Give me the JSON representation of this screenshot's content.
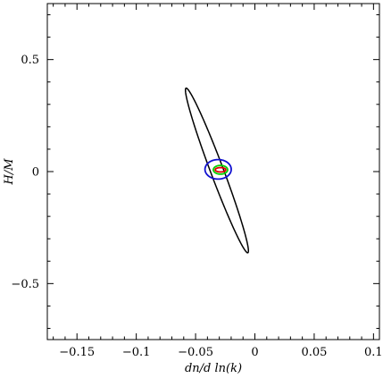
{
  "chart_data": {
    "type": "scatter",
    "title": "",
    "xlabel": "dn/d ln(k)",
    "ylabel": "H/M",
    "xlim": [
      -0.175,
      0.105
    ],
    "ylim": [
      -0.75,
      0.75
    ],
    "xticks": [
      -0.15,
      -0.1,
      -0.05,
      0,
      0.05,
      0.1
    ],
    "xtick_labels": [
      "−0.15",
      "−0.1",
      "−0.05",
      "0",
      "0.05",
      "0.1"
    ],
    "yticks": [
      -0.5,
      0,
      0.5
    ],
    "ytick_labels": [
      "−0.5",
      "0",
      "0.5"
    ],
    "grid": false,
    "series": [
      {
        "kind": "ellipse",
        "color": "#000000",
        "center": [
          -0.032,
          0.005
        ],
        "semi_axes": [
          0.262,
          0.0195
        ],
        "angle_deg": -69.2
      },
      {
        "kind": "ellipse",
        "color": "#1010d0",
        "center": [
          -0.031,
          0.01
        ],
        "semi_axes": [
          0.0395,
          0.029
        ],
        "angle_deg": 0
      },
      {
        "kind": "ellipse",
        "color": "#00d000",
        "center": [
          -0.029,
          0.008
        ],
        "semi_axes": [
          0.0215,
          0.013
        ],
        "angle_deg": 0
      },
      {
        "kind": "ellipse",
        "color": "#e00000",
        "center": [
          -0.029,
          0.008
        ],
        "semi_axes": [
          0.016,
          0.0065
        ],
        "angle_deg": 0
      }
    ]
  }
}
